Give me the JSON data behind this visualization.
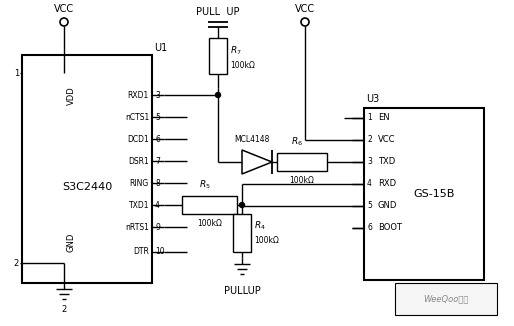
{
  "bg_color": "#ffffff",
  "line_color": "#000000",
  "figsize": [
    5.14,
    3.26
  ],
  "dpi": 100,
  "s3c2440_label": "S3C2440",
  "gs15b_label": "GS-15B",
  "u1_label": "U1",
  "u3_label": "U3",
  "vdd_label": "VDD",
  "gnd_label": "GND",
  "vcc_label": "VCC",
  "pull_up_label": "PULL  UP",
  "pullup_label": "PULLUP",
  "r4_label": "R4",
  "r5_label": "R5",
  "r6_label": "R6",
  "r7_label": "R7",
  "r_val": "100kΩ",
  "mcl4148_label": "MCL4148",
  "weeqoo_label": "WeeQoo维库",
  "s3c_pin_labels": [
    "RXD1",
    "nCTS1",
    "DCD1",
    "DSR1",
    "RING",
    "TXD1",
    "nRTS1",
    "DTR"
  ],
  "s3c_pin_nums": [
    "3",
    "5",
    "6",
    "7",
    "8",
    "4",
    "9",
    "10"
  ],
  "gs_pin_labels": [
    "EN",
    "VCC",
    "TXD",
    "RXD",
    "GND",
    "BOOT"
  ],
  "gs_pin_nums": [
    "1",
    "2",
    "3",
    "4",
    "5",
    "6"
  ]
}
